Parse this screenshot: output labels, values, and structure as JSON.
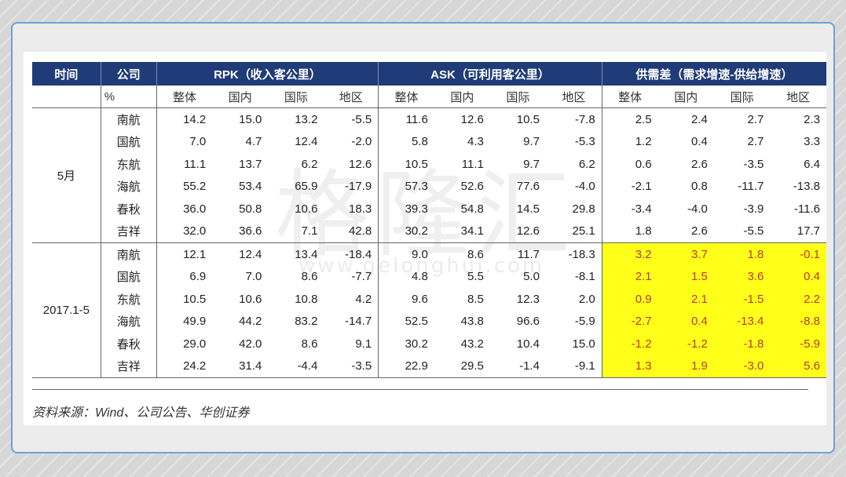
{
  "table": {
    "header": {
      "time": "时间",
      "company": "公司",
      "rpk": "RPK（收入客公里）",
      "ask": "ASK（可利用客公里）",
      "gap": "供需差（需求增速-供给增速）"
    },
    "subheader": {
      "unit": "%",
      "cols": [
        "整体",
        "国内",
        "国际",
        "地区",
        "整体",
        "国内",
        "国际",
        "地区",
        "整体",
        "国内",
        "国际",
        "地区"
      ]
    },
    "sections": [
      {
        "period": "5月",
        "rows": [
          {
            "company": "南航",
            "values": [
              "14.2",
              "15.0",
              "13.2",
              "-5.5",
              "11.6",
              "12.6",
              "10.5",
              "-7.8",
              "2.5",
              "2.4",
              "2.7",
              "2.3"
            ]
          },
          {
            "company": "国航",
            "values": [
              "7.0",
              "4.7",
              "12.4",
              "-2.0",
              "5.8",
              "4.3",
              "9.7",
              "-5.3",
              "1.2",
              "0.4",
              "2.7",
              "3.3"
            ]
          },
          {
            "company": "东航",
            "values": [
              "11.1",
              "13.7",
              "6.2",
              "12.6",
              "10.5",
              "11.1",
              "9.7",
              "6.2",
              "0.6",
              "2.6",
              "-3.5",
              "6.4"
            ]
          },
          {
            "company": "海航",
            "values": [
              "55.2",
              "53.4",
              "65.9",
              "-17.9",
              "57.3",
              "52.6",
              "77.6",
              "-4.0",
              "-2.1",
              "0.8",
              "-11.7",
              "-13.8"
            ]
          },
          {
            "company": "春秋",
            "values": [
              "36.0",
              "50.8",
              "10.6",
              "18.3",
              "39.3",
              "54.8",
              "14.5",
              "29.8",
              "-3.4",
              "-4.0",
              "-3.9",
              "-11.6"
            ]
          },
          {
            "company": "吉祥",
            "values": [
              "32.0",
              "36.6",
              "7.1",
              "42.8",
              "30.2",
              "34.1",
              "12.6",
              "25.1",
              "1.8",
              "2.6",
              "-5.5",
              "17.7"
            ]
          }
        ]
      },
      {
        "period": "2017.1-5",
        "rows": [
          {
            "company": "南航",
            "values": [
              "12.1",
              "12.4",
              "13.4",
              "-18.4",
              "9.0",
              "8.6",
              "11.7",
              "-18.3",
              "3.2",
              "3.7",
              "1.8",
              "-0.1"
            ]
          },
          {
            "company": "国航",
            "values": [
              "6.9",
              "7.0",
              "8.6",
              "-7.7",
              "4.8",
              "5.5",
              "5.0",
              "-8.1",
              "2.1",
              "1.5",
              "3.6",
              "0.4"
            ]
          },
          {
            "company": "东航",
            "values": [
              "10.5",
              "10.6",
              "10.8",
              "4.2",
              "9.6",
              "8.5",
              "12.3",
              "2.0",
              "0.9",
              "2.1",
              "-1.5",
              "2.2"
            ]
          },
          {
            "company": "海航",
            "values": [
              "49.9",
              "44.2",
              "83.2",
              "-14.7",
              "52.5",
              "43.8",
              "96.6",
              "-5.9",
              "-2.7",
              "0.4",
              "-13.4",
              "-8.8"
            ]
          },
          {
            "company": "春秋",
            "values": [
              "29.0",
              "42.0",
              "8.6",
              "9.1",
              "30.2",
              "43.2",
              "10.4",
              "15.0",
              "-1.2",
              "-1.2",
              "-1.8",
              "-5.9"
            ]
          },
          {
            "company": "吉祥",
            "values": [
              "24.2",
              "31.4",
              "-4.4",
              "-3.5",
              "22.9",
              "29.5",
              "-1.4",
              "-9.1",
              "1.3",
              "1.9",
              "-3.0",
              "5.6"
            ]
          }
        ]
      }
    ]
  },
  "source": "资料来源：Wind、公司公告、华创证券",
  "watermark": "格隆汇",
  "watermark_url": "www.gelonghui.com",
  "colors": {
    "header_bg": "#1f3c78",
    "highlight_bg": "#ffff1a",
    "highlight_text": "#c0392b",
    "frame_border": "#6ea0d8"
  }
}
